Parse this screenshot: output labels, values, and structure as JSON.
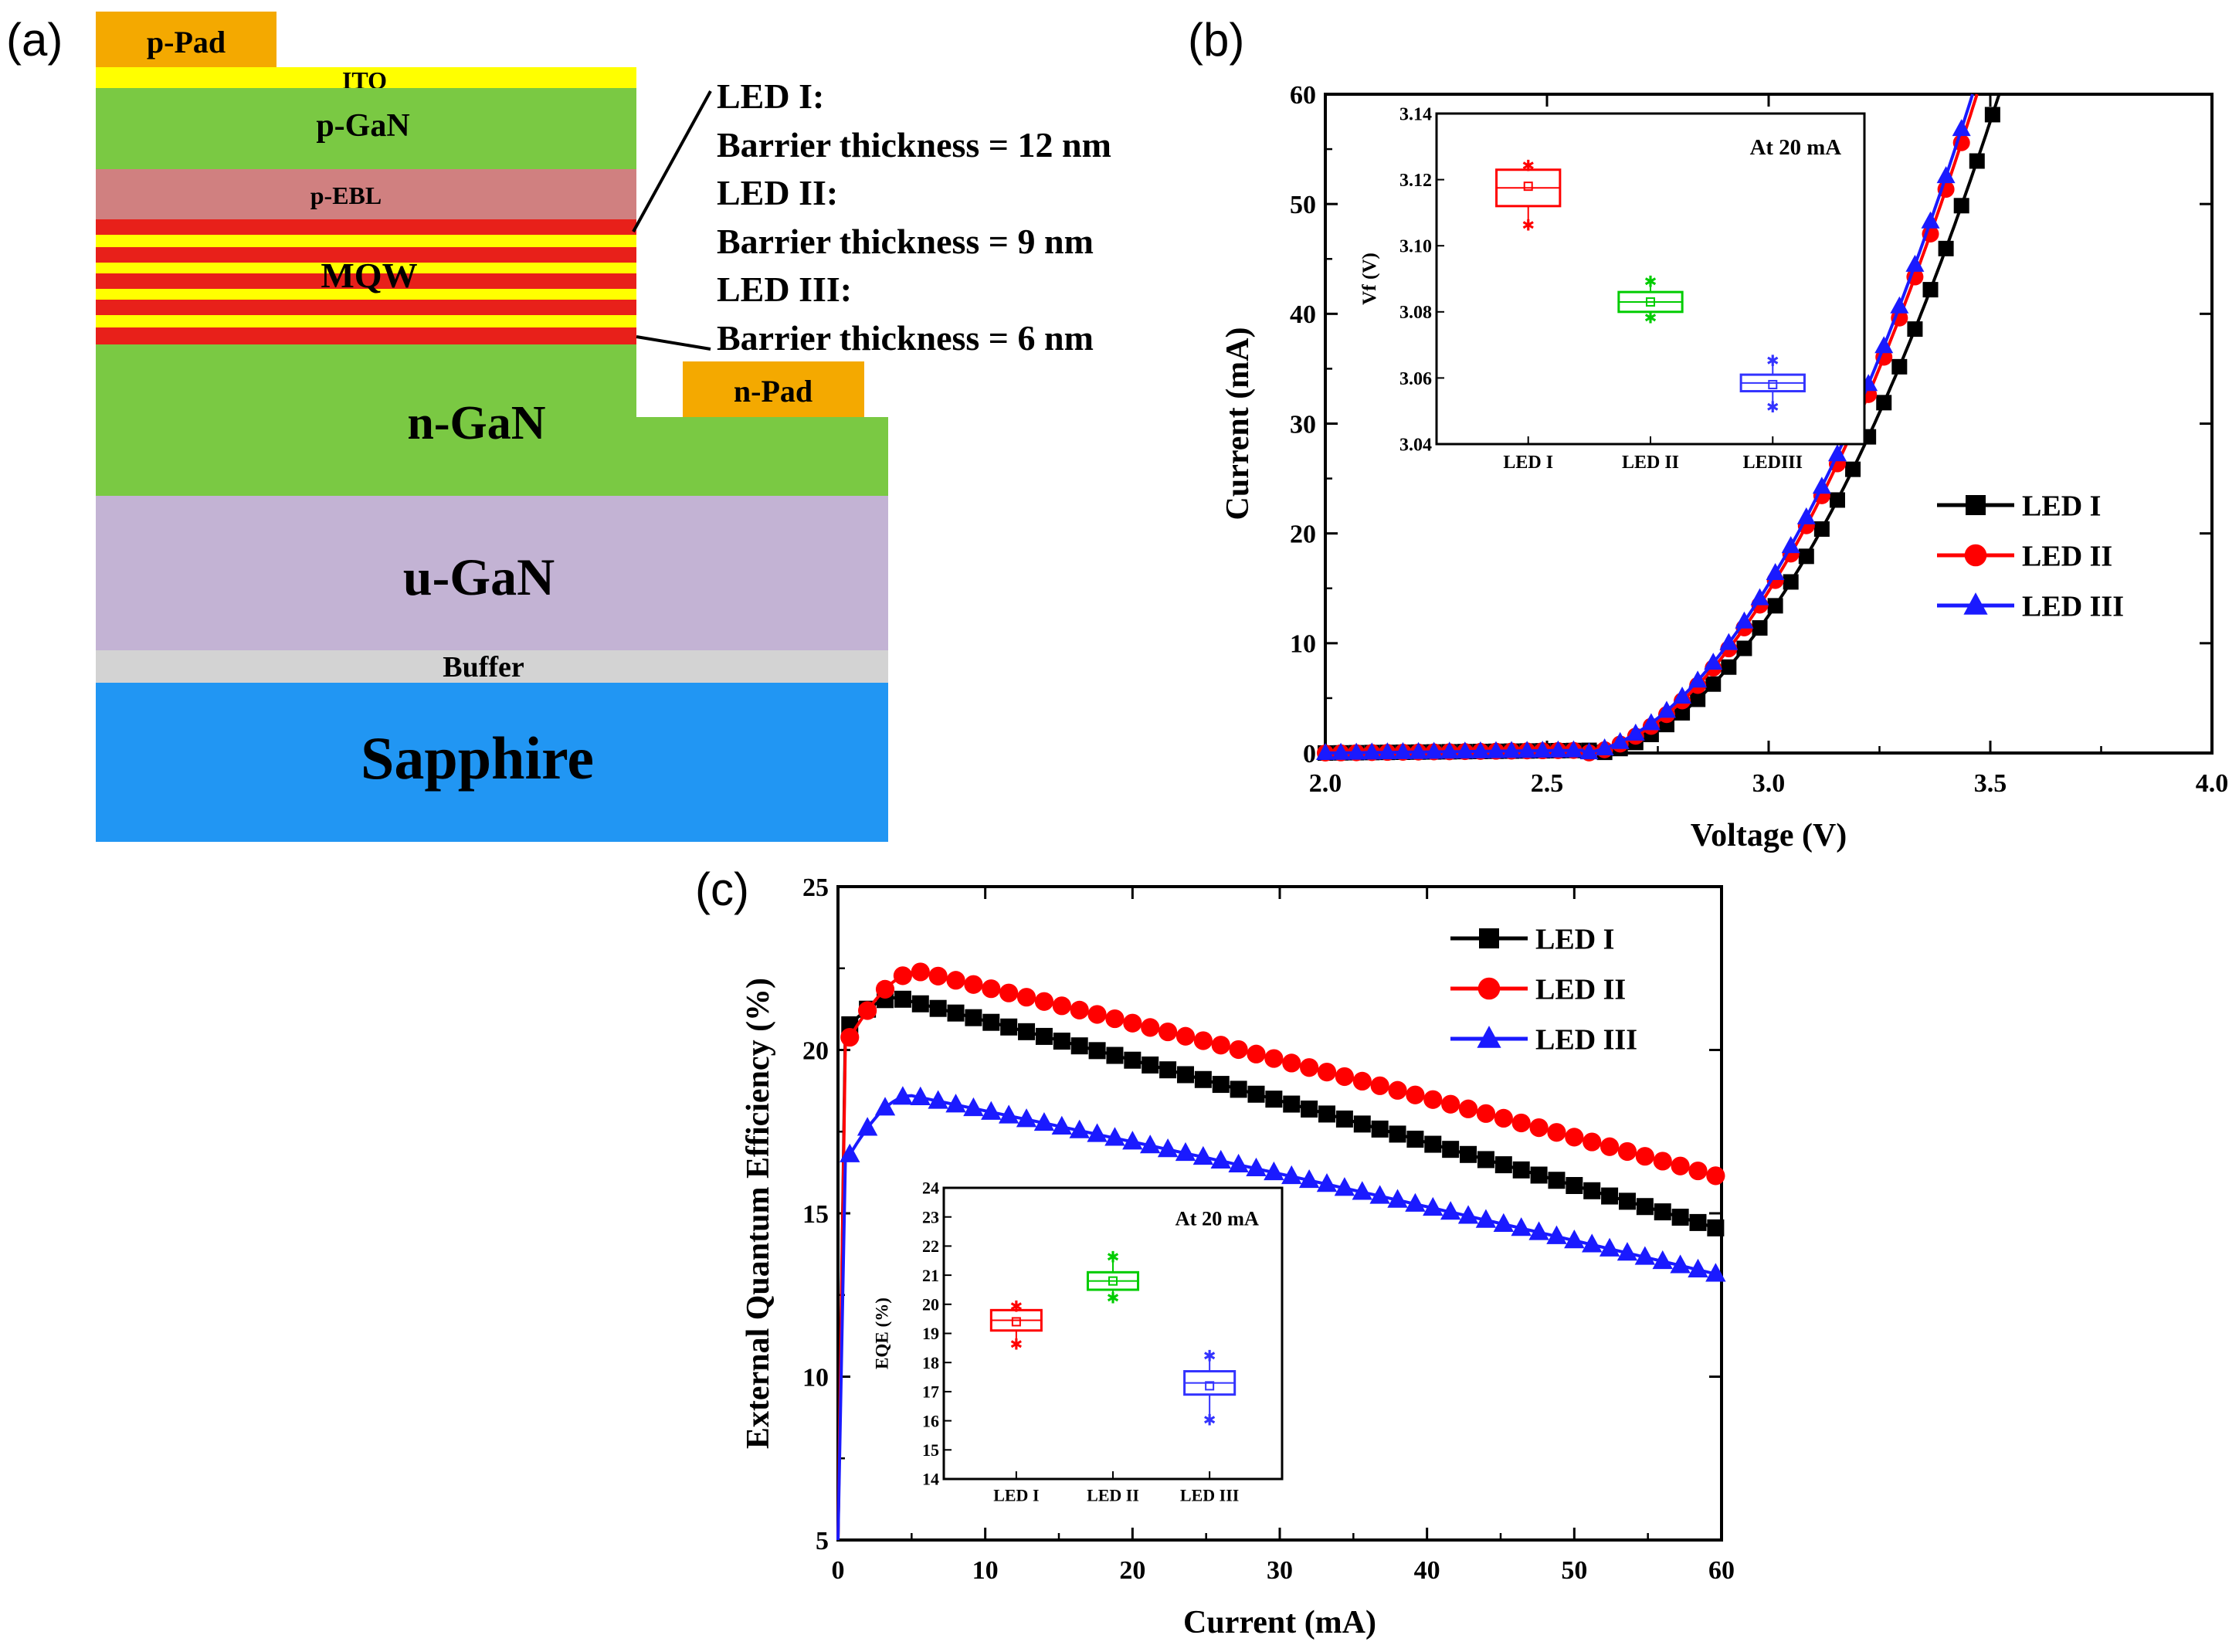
{
  "panels": {
    "a": {
      "label": "(a)",
      "layers": {
        "p_pad": "p-Pad",
        "ito": "ITO",
        "p_gan": "p-GaN",
        "p_ebl": "p-EBL",
        "mqw": "MQW",
        "n_pad": "n-Pad",
        "n_gan": "n-GaN",
        "u_gan": "u-GaN",
        "buffer": "Buffer",
        "sapphire": "Sapphire"
      },
      "annotations": [
        {
          "name": "LED I:",
          "detail": "Barrier thickness = 12 nm"
        },
        {
          "name": "LED II:",
          "detail": "Barrier thickness = 9 nm"
        },
        {
          "name": "LED III:",
          "detail": "Barrier thickness = 6 nm"
        }
      ],
      "colors": {
        "pad": "#f4a900",
        "ito": "#ffff00",
        "p_gan": "#7ac943",
        "p_ebl": "#d08080",
        "mqw_red": "#e8201a",
        "mqw_yellow": "#ffff00",
        "n_gan": "#7ac943",
        "u_gan": "#c3b3d4",
        "buffer": "#d3d3d3",
        "sapphire": "#2196f3"
      }
    },
    "b": {
      "label": "(b)"
    },
    "c": {
      "label": "(c)"
    }
  },
  "chart_data": [
    {
      "id": "b",
      "type": "line",
      "xlabel": "Voltage (V)",
      "ylabel": "Current (mA)",
      "xlim": [
        2.0,
        4.0
      ],
      "ylim": [
        0,
        60
      ],
      "xticks": [
        2.0,
        2.5,
        3.0,
        3.5,
        4.0
      ],
      "xtick_labels": [
        "2.0",
        "2.5",
        "3.0",
        "3.5",
        "4.0"
      ],
      "yticks": [
        0,
        10,
        20,
        30,
        40,
        50,
        60
      ],
      "ytick_labels": [
        "0",
        "10",
        "20",
        "30",
        "40",
        "50",
        "60"
      ],
      "legend": "center-right",
      "series": [
        {
          "name": "LED I",
          "color": "#000000",
          "marker": "square",
          "turn_on_v": 2.615,
          "v_at_60mA": 3.52
        },
        {
          "name": "LED II",
          "color": "#ff0000",
          "marker": "circle",
          "turn_on_v": 2.59,
          "v_at_60mA": 3.47
        },
        {
          "name": "LED III",
          "color": "#1a1aff",
          "marker": "triangle",
          "turn_on_v": 2.58,
          "v_at_60mA": 3.46
        }
      ],
      "inset": {
        "type": "box",
        "ylabel": "Vf (V)",
        "ylim": [
          3.04,
          3.14
        ],
        "yticks": [
          3.04,
          3.06,
          3.08,
          3.1,
          3.12,
          3.14
        ],
        "ytick_labels": [
          "3.04",
          "3.06",
          "3.08",
          "3.10",
          "3.12",
          "3.14"
        ],
        "categories": [
          "LED I",
          "LED II",
          "LEDIII"
        ],
        "annotation": "At 20 mA",
        "boxes": [
          {
            "color": "#ff0000",
            "q1": 3.112,
            "q3": 3.123,
            "mean": 3.118,
            "min": 3.106,
            "max": 3.124
          },
          {
            "color": "#00cc00",
            "q1": 3.08,
            "q3": 3.086,
            "mean": 3.083,
            "min": 3.078,
            "max": 3.089
          },
          {
            "color": "#3333ff",
            "q1": 3.056,
            "q3": 3.061,
            "mean": 3.058,
            "min": 3.051,
            "max": 3.065
          }
        ]
      }
    },
    {
      "id": "c",
      "type": "line",
      "xlabel": "Current (mA)",
      "ylabel": "External Quantum Efficiency (%)",
      "xlim": [
        0,
        60
      ],
      "ylim": [
        5,
        25
      ],
      "xticks": [
        0,
        10,
        20,
        30,
        40,
        50,
        60
      ],
      "xtick_labels": [
        "0",
        "10",
        "20",
        "30",
        "40",
        "50",
        "60"
      ],
      "yticks": [
        5,
        10,
        15,
        20,
        25
      ],
      "ytick_labels": [
        "5",
        "10",
        "15",
        "20",
        "25"
      ],
      "legend": "top-right",
      "series": [
        {
          "name": "LED I",
          "color": "#000000",
          "marker": "square",
          "start": 20.4,
          "peak": 21.6,
          "peak_x": 4,
          "end": 14.5
        },
        {
          "name": "LED II",
          "color": "#ff0000",
          "marker": "circle",
          "start": 19.8,
          "peak": 22.4,
          "peak_x": 5.5,
          "end": 16.1
        },
        {
          "name": "LED III",
          "color": "#1a1aff",
          "marker": "triangle",
          "start": 16.2,
          "peak": 18.6,
          "peak_x": 5,
          "end": 13.1
        }
      ],
      "inset": {
        "type": "box",
        "ylabel": "EQE (%)",
        "ylim": [
          14,
          24
        ],
        "yticks": [
          14,
          15,
          16,
          17,
          18,
          19,
          20,
          21,
          22,
          23,
          24
        ],
        "ytick_labels": [
          "14",
          "15",
          "16",
          "17",
          "18",
          "19",
          "20",
          "21",
          "22",
          "23",
          "24"
        ],
        "categories": [
          "LED I",
          "LED II",
          "LED III"
        ],
        "annotation": "At 20 mA",
        "boxes": [
          {
            "color": "#ff0000",
            "q1": 19.1,
            "q3": 19.8,
            "mean": 19.4,
            "min": 18.6,
            "max": 19.9
          },
          {
            "color": "#00cc00",
            "q1": 20.5,
            "q3": 21.1,
            "mean": 20.8,
            "min": 20.2,
            "max": 21.6
          },
          {
            "color": "#3333ff",
            "q1": 16.9,
            "q3": 17.7,
            "mean": 17.2,
            "min": 16.0,
            "max": 18.2
          }
        ]
      }
    }
  ]
}
